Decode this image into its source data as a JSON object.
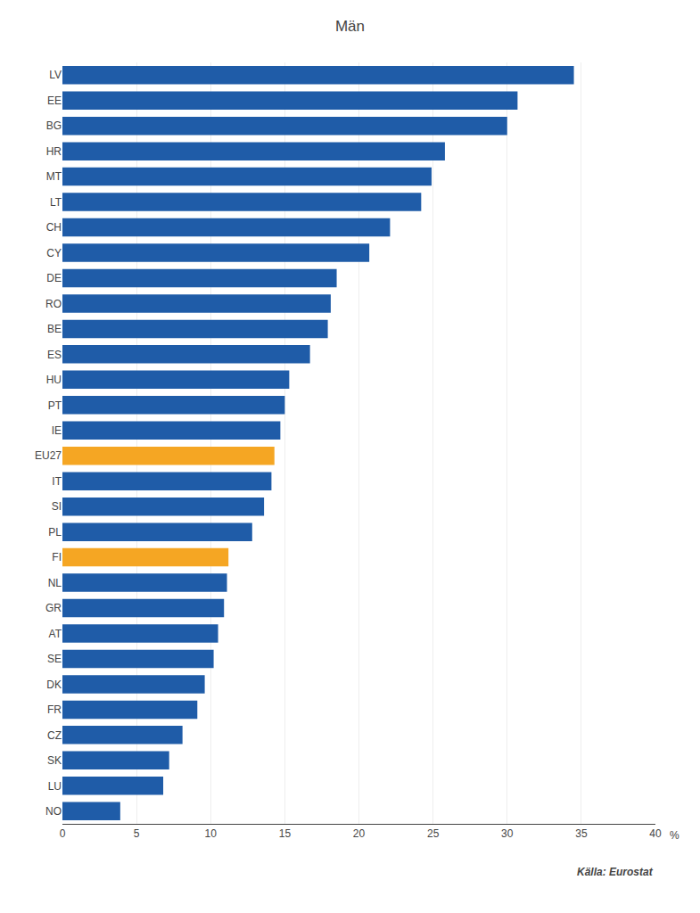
{
  "chart_data": {
    "type": "bar",
    "orientation": "horizontal",
    "title": "Män",
    "categories": [
      "LV",
      "EE",
      "BG",
      "HR",
      "MT",
      "LT",
      "CH",
      "CY",
      "DE",
      "RO",
      "BE",
      "ES",
      "HU",
      "PT",
      "IE",
      "EU27",
      "IT",
      "SI",
      "PL",
      "FI",
      "NL",
      "GR",
      "AT",
      "SE",
      "DK",
      "FR",
      "CZ",
      "SK",
      "LU",
      "NO"
    ],
    "values": [
      34.5,
      30.7,
      30.0,
      25.8,
      24.9,
      24.2,
      22.1,
      20.7,
      18.5,
      18.1,
      17.9,
      16.7,
      15.3,
      15.0,
      14.7,
      14.3,
      14.1,
      13.6,
      12.8,
      11.2,
      11.1,
      10.9,
      10.5,
      10.2,
      9.6,
      9.1,
      8.1,
      7.2,
      6.8,
      3.9
    ],
    "colors": [
      "#1f5ca8",
      "#1f5ca8",
      "#1f5ca8",
      "#1f5ca8",
      "#1f5ca8",
      "#1f5ca8",
      "#1f5ca8",
      "#1f5ca8",
      "#1f5ca8",
      "#1f5ca8",
      "#1f5ca8",
      "#1f5ca8",
      "#1f5ca8",
      "#1f5ca8",
      "#1f5ca8",
      "#f5a623",
      "#1f5ca8",
      "#1f5ca8",
      "#1f5ca8",
      "#f5a623",
      "#1f5ca8",
      "#1f5ca8",
      "#1f5ca8",
      "#1f5ca8",
      "#1f5ca8",
      "#1f5ca8",
      "#1f5ca8",
      "#1f5ca8",
      "#1f5ca8",
      "#1f5ca8"
    ],
    "xlim": [
      0,
      40
    ],
    "xticks": [
      0,
      5,
      10,
      15,
      20,
      25,
      30,
      35,
      40
    ],
    "grid": true,
    "annotations": [
      "%",
      "Källa: Eurostat"
    ]
  }
}
